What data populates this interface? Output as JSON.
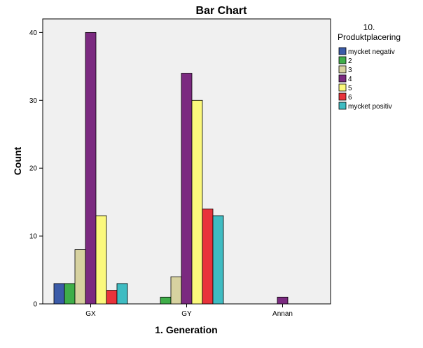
{
  "chart_data": {
    "type": "bar",
    "title": "Bar Chart",
    "xlabel": "1. Generation",
    "ylabel": "Count",
    "ylim": [
      0,
      42
    ],
    "yticks": [
      0,
      10,
      20,
      30,
      40
    ],
    "grid": false,
    "legend_position": "right",
    "legend_title": [
      "10.",
      "Produktplacering"
    ],
    "categories": [
      "GX",
      "GY",
      "Annan"
    ],
    "series": [
      {
        "name": "mycket negativ",
        "color": "#3b5ba8",
        "values": [
          3,
          0,
          0
        ]
      },
      {
        "name": "2",
        "color": "#3fae49",
        "values": [
          3,
          1,
          0
        ]
      },
      {
        "name": "3",
        "color": "#d7d2a0",
        "values": [
          8,
          4,
          0
        ]
      },
      {
        "name": "4",
        "color": "#7b2a80",
        "values": [
          40,
          34,
          1
        ]
      },
      {
        "name": "5",
        "color": "#fbf87c",
        "values": [
          13,
          30,
          0
        ]
      },
      {
        "name": "6",
        "color": "#e8333b",
        "values": [
          2,
          14,
          0
        ]
      },
      {
        "name": "mycket positiv",
        "color": "#3fbcc2",
        "values": [
          3,
          13,
          0
        ]
      }
    ],
    "plot_background": "#f0f0f0"
  }
}
